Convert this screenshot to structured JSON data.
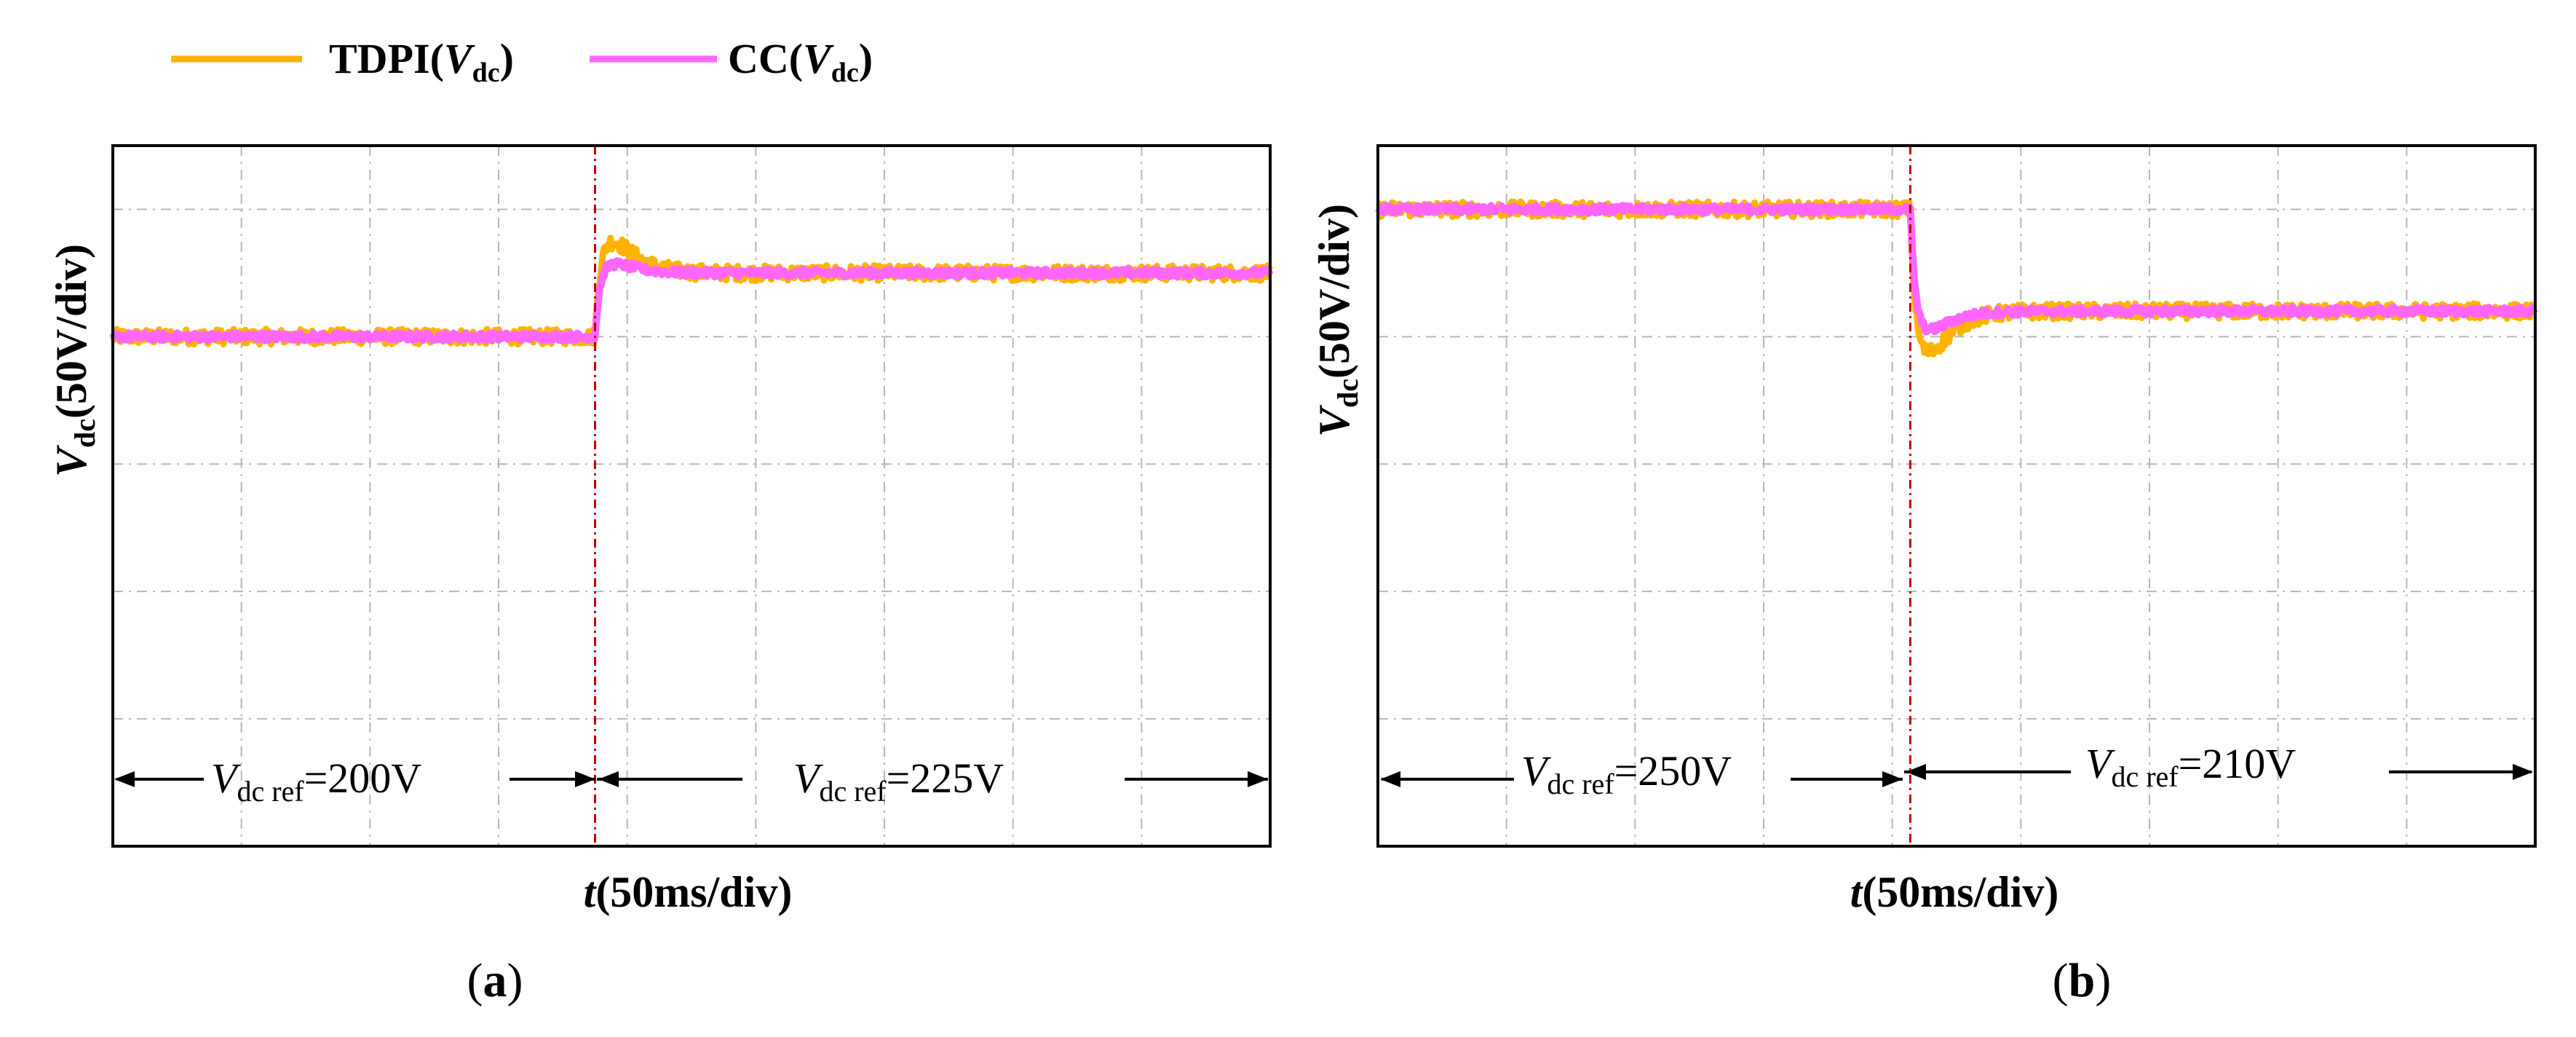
{
  "legend": {
    "items": [
      {
        "label": "TDPI(",
        "var": "V",
        "sub": "dc",
        "close": ")",
        "color": "#FFB300"
      },
      {
        "label": "CC(",
        "var": "V",
        "sub": "dc",
        "close": ")",
        "color": "#FF66FF"
      }
    ]
  },
  "colors": {
    "tdpi": "#FFB300",
    "cc": "#FF66FF",
    "grid": "#b5b5b5",
    "step_marker": "#c00000",
    "axes": "#000000"
  },
  "chart_data": [
    {
      "type": "line",
      "panel_label": "(a)",
      "panel_letter": "a",
      "xlabel": {
        "var": "t",
        "text": "(50ms/div)"
      },
      "ylabel": {
        "var": "V",
        "sub": "dc",
        "text": "(50V/div)"
      },
      "xlim": [
        0,
        450
      ],
      "ylim": [
        0,
        275
      ],
      "x_divisions": 9,
      "y_divisions": 11,
      "grid": true,
      "step_time": 187.5,
      "annotations": [
        {
          "var": "V",
          "sub": "dc ref",
          "value": "=200V"
        },
        {
          "var": "V",
          "sub": "dc ref",
          "value": "=225V"
        }
      ],
      "series": [
        {
          "name": "TDPI(Vdc)",
          "before": 200,
          "after": 225,
          "overshoot_peak": 238,
          "noise": 3
        },
        {
          "name": "CC(Vdc)",
          "before": 200,
          "after": 225,
          "overshoot_peak": 229,
          "noise": 1.5
        }
      ]
    },
    {
      "type": "line",
      "panel_label": "(b)",
      "panel_letter": "b",
      "xlabel": {
        "var": "t",
        "text": "(50ms/div)"
      },
      "ylabel": {
        "var": "V",
        "sub": "dc",
        "text": "(50V/div)"
      },
      "xlim": [
        0,
        450
      ],
      "ylim": [
        0,
        275
      ],
      "x_divisions": 9,
      "y_divisions": 11,
      "grid": true,
      "step_time": 207,
      "annotations": [
        {
          "var": "V",
          "sub": "dc ref",
          "value": "=250V"
        },
        {
          "var": "V",
          "sub": "dc ref",
          "value": "=210V"
        }
      ],
      "series": [
        {
          "name": "TDPI(Vdc)",
          "before": 250,
          "after": 210,
          "overshoot_peak": 193,
          "noise": 3
        },
        {
          "name": "CC(Vdc)",
          "before": 250,
          "after": 210,
          "overshoot_peak": 202,
          "noise": 1.5
        }
      ]
    }
  ]
}
